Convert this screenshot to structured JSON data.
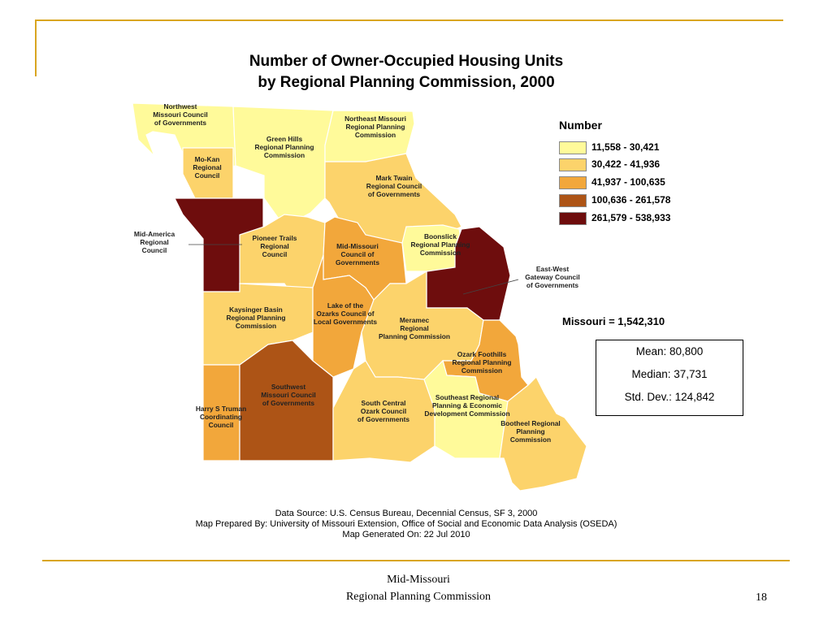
{
  "title_line1": "Number of Owner-Occupied Housing Units",
  "title_line2": "by Regional Planning Commission, 2000",
  "legend": {
    "title": "Number",
    "classes": [
      {
        "label": "11,558 - 30,421",
        "color": "#fffa9a"
      },
      {
        "label": "30,422 - 41,936",
        "color": "#fcd36b"
      },
      {
        "label": "41,937 - 100,635",
        "color": "#f2a73b"
      },
      {
        "label": "100,636 - 261,578",
        "color": "#ad5416"
      },
      {
        "label": "261,579 - 538,933",
        "color": "#6e0d0d"
      }
    ]
  },
  "regions": [
    {
      "name": "Northwest Missouri Council of Governments",
      "label": [
        "Northwest",
        "Missouri Council",
        "of Governments"
      ],
      "class": 0
    },
    {
      "name": "Green Hills Regional Planning Commission",
      "label": [
        "Green Hills",
        "Regional Planning",
        "Commission"
      ],
      "class": 0
    },
    {
      "name": "Northeast Missouri Regional Planning Commission",
      "label": [
        "Northeast Missouri",
        "Regional Planning",
        "Commission"
      ],
      "class": 0
    },
    {
      "name": "Mo-Kan Regional Council",
      "label": [
        "Mo-Kan",
        "Regional",
        "Council"
      ],
      "class": 1
    },
    {
      "name": "Mark Twain Regional Council of Governments",
      "label": [
        "Mark Twain",
        "Regional Council",
        "of Governments"
      ],
      "class": 1
    },
    {
      "name": "Mid-America Regional Council",
      "label": [
        "Mid-America",
        "Regional",
        "Council"
      ],
      "class": 4
    },
    {
      "name": "Pioneer Trails Regional Council",
      "label": [
        "Pioneer Trails",
        "Regional",
        "Council"
      ],
      "class": 1
    },
    {
      "name": "Mid-Missouri Council of Governments",
      "label": [
        "Mid-Missouri",
        "Council of",
        "Governments"
      ],
      "class": 2
    },
    {
      "name": "Boonslick Regional Planning Commission",
      "label": [
        "Boonslick",
        "Regional Planning",
        "Commission"
      ],
      "class": 0
    },
    {
      "name": "East-West Gateway Council of Governments",
      "label": [
        "East-West",
        "Gateway Council",
        "of Governments"
      ],
      "class": 4
    },
    {
      "name": "Kaysinger Basin Regional Planning Commission",
      "label": [
        "Kaysinger Basin",
        "Regional Planning",
        "Commission"
      ],
      "class": 1
    },
    {
      "name": "Lake of the Ozarks Council of Local Governments",
      "label": [
        "Lake of the",
        "Ozarks Council of",
        "Local Governments"
      ],
      "class": 2
    },
    {
      "name": "Meramec Regional Planning Commission",
      "label": [
        "Meramec",
        "Regional",
        "Planning Commission"
      ],
      "class": 1
    },
    {
      "name": "Ozark Foothills Regional Planning Commission",
      "label": [
        "Ozark Foothills",
        "Regional Planning",
        "Commission"
      ],
      "class": 2
    },
    {
      "name": "Harry S Truman Coordinating Council",
      "label": [
        "Harry S Truman",
        "Coordinating",
        "Council"
      ],
      "class": 2
    },
    {
      "name": "Southwest Missouri Council of Governments",
      "label": [
        "Southwest",
        "Missouri Council",
        "of Governments"
      ],
      "class": 3
    },
    {
      "name": "South Central Ozark Council of Governments",
      "label": [
        "South Central",
        "Ozark Council",
        "of Governments"
      ],
      "class": 1
    },
    {
      "name": "Southeast Regional Planning & Economic Development Commission",
      "label": [
        "Southeast Regional",
        "Planning & Economic",
        "Development Commission"
      ],
      "class": 0
    },
    {
      "name": "Bootheel Regional Planning Commission",
      "label": [
        "Bootheel Regional",
        "Planning",
        "Commission"
      ],
      "class": 1
    }
  ],
  "total": "Missouri = 1,542,310",
  "stats": {
    "mean": "Mean: 80,800",
    "median": "Median: 37,731",
    "std_dev": "Std. Dev.: 124,842"
  },
  "source_lines": [
    "Data Source: U.S. Census Bureau, Decennial Census, SF 3, 2000",
    "Map Prepared By: University of Missouri Extension, Office of Social and Economic Data Analysis (OSEDA)",
    "Map Generated On: 22 Jul 2010"
  ],
  "footer": {
    "org_line1": "Mid-Missouri",
    "org_line2": "Regional Planning Commission",
    "page_number": "18"
  }
}
